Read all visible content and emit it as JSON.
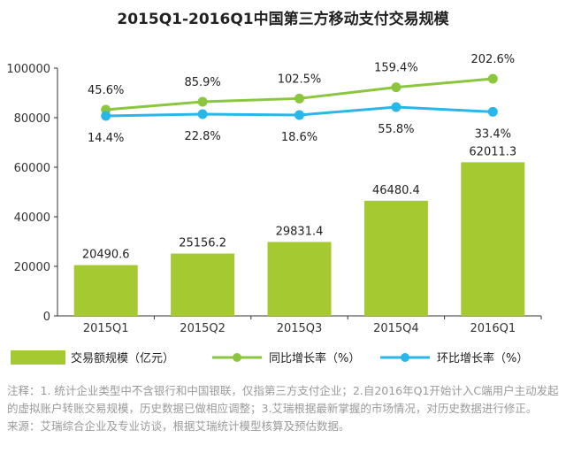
{
  "chart_data": {
    "type": "bar",
    "title": "2015Q1-2016Q1中国第三方移动支付交易规模",
    "categories": [
      "2015Q1",
      "2015Q2",
      "2015Q3",
      "2015Q4",
      "2016Q1"
    ],
    "ylim": [
      0,
      100000
    ],
    "yticks": [
      "0",
      "20000",
      "40000",
      "60000",
      "80000",
      "100000"
    ],
    "grid": false,
    "legend_position": "bottom",
    "bars": {
      "name": "交易额规模（亿元）",
      "values": [
        20490.6,
        25156.2,
        29831.4,
        46480.4,
        62011.3
      ],
      "labels": [
        "20490.6",
        "25156.2",
        "29831.4",
        "46480.4",
        "62011.3"
      ],
      "color": "#a5c930"
    },
    "lines": [
      {
        "name": "同比增长率（%）",
        "color": "#8cc63f",
        "values": [
          45.6,
          85.9,
          102.5,
          159.4,
          202.6
        ],
        "labels": [
          "45.6%",
          "85.9%",
          "102.5%",
          "159.4%",
          "202.6%"
        ],
        "label_position": "above"
      },
      {
        "name": "环比增长率（%）",
        "color": "#29b6e8",
        "values": [
          14.4,
          22.8,
          18.6,
          55.8,
          33.4
        ],
        "labels": [
          "14.4%",
          "22.8%",
          "18.6%",
          "55.8%",
          "33.4%"
        ],
        "label_position": "below"
      }
    ]
  },
  "notes": {
    "note": "注释：1. 统计企业类型中不含银行和中国银联，仅指第三方支付企业；2.自2016年Q1开始计入C端用户主动发起的虚拟账户转账交易规模，历史数据已做相应调整；3.艾瑞根据最新掌握的市场情况，对历史数据进行修正。",
    "source": "来源：艾瑞综合企业及专业访谈，根据艾瑞统计模型核算及预估数据。"
  }
}
